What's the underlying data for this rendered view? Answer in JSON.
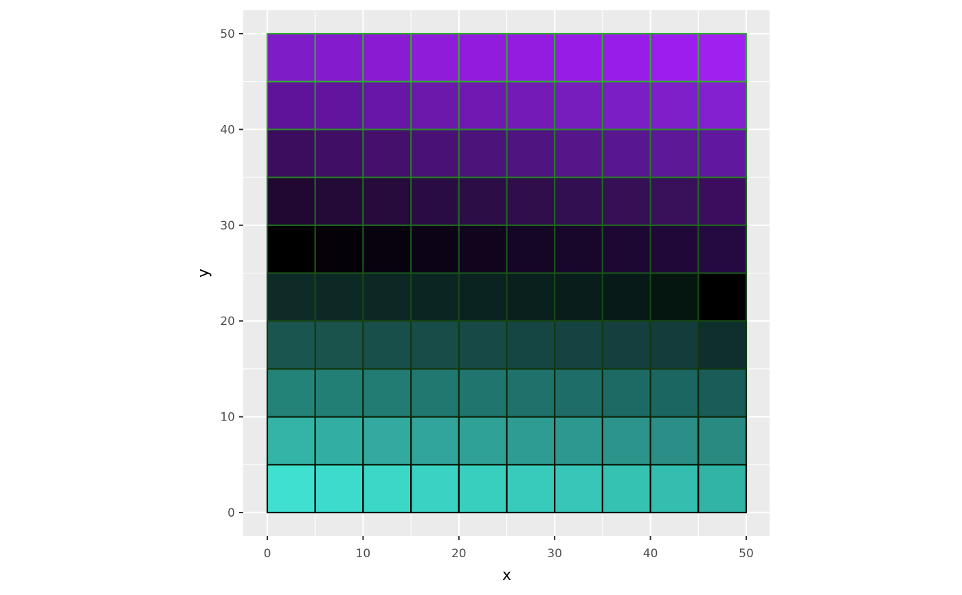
{
  "chart_data": {
    "type": "heatmap",
    "title": "",
    "xlabel": "x",
    "ylabel": "y",
    "xlim": [
      0,
      50
    ],
    "ylim": [
      0,
      50
    ],
    "x_ticks": [
      "0",
      "10",
      "20",
      "30",
      "40",
      "50"
    ],
    "y_ticks": [
      "0",
      "10",
      "20",
      "30",
      "40",
      "50"
    ],
    "x_tick_values": [
      0,
      10,
      20,
      30,
      40,
      50
    ],
    "y_tick_values": [
      0,
      10,
      20,
      30,
      40,
      50
    ],
    "grid": true,
    "panel_background": "#ebebeb",
    "grid_color": "#ffffff",
    "tile_width": 5,
    "tile_height": 5,
    "tile_x": [
      0,
      5,
      10,
      15,
      20,
      25,
      30,
      35,
      40,
      45
    ],
    "tile_y": [
      0,
      5,
      10,
      15,
      20,
      25,
      30,
      35,
      40,
      45
    ],
    "tile_fill_rows_bottom_to_top": [
      [
        "#40e0d0",
        "#3ddbcb",
        "#3bd7c7",
        "#3ad3c3",
        "#39cfbf",
        "#38cbbb",
        "#37c6b7",
        "#36c2b3",
        "#34beaf",
        "#31b3a5"
      ],
      [
        "#34b3a7",
        "#33aea2",
        "#32aa9f",
        "#31a59b",
        "#30a197",
        "#2f9c93",
        "#2d988f",
        "#2c948b",
        "#2b8f87",
        "#288a80"
      ],
      [
        "#238379",
        "#227f76",
        "#227c73",
        "#217871",
        "#20756e",
        "#1f716b",
        "#1e6d68",
        "#1d6a65",
        "#1c6662",
        "#1a5d58"
      ],
      [
        "#1a554f",
        "#1a524c",
        "#194f4a",
        "#184c48",
        "#174946",
        "#164643",
        "#154341",
        "#143f3e",
        "#133c3b",
        "#0f2f2d"
      ],
      [
        "#0e2b28",
        "#0d2926",
        "#0c2724",
        "#0b2522",
        "#0a2320",
        "#0a201d",
        "#091d1a",
        "#071a17",
        "#051510",
        "#000000"
      ],
      [
        "#000000",
        "#040108",
        "#08020f",
        "#0c0316",
        "#10051d",
        "#140624",
        "#18072b",
        "#1c0832",
        "#200939",
        "#240a40"
      ],
      [
        "#200832",
        "#230a37",
        "#260b3c",
        "#290c41",
        "#2c0d46",
        "#2f0e4b",
        "#320f50",
        "#351055",
        "#38115a",
        "#3c0c5e"
      ],
      [
        "#3c0c5e",
        "#400e65",
        "#44106c",
        "#481173",
        "#4c137a",
        "#501481",
        "#541688",
        "#58178f",
        "#5c1896",
        "#60189f"
      ],
      [
        "#5f139a",
        "#63149f",
        "#6716a5",
        "#6b18ab",
        "#6f19b1",
        "#731ab7",
        "#771cbd",
        "#7b1ec3",
        "#7f1fc9",
        "#8520d0"
      ],
      [
        "#7e1cc7",
        "#841bcd",
        "#8a1bd3",
        "#8e1cd8",
        "#911cdc",
        "#941ce1",
        "#971ce6",
        "#991de9",
        "#9c1ded",
        "#a020f0"
      ]
    ],
    "tile_outline_rows_bottom_to_top": [
      "#000000",
      "#081808",
      "#0e2a0e",
      "#123812",
      "#164616",
      "#1a541a",
      "#1f661f",
      "#247a24",
      "#2a8e2a",
      "#33aa33"
    ]
  }
}
